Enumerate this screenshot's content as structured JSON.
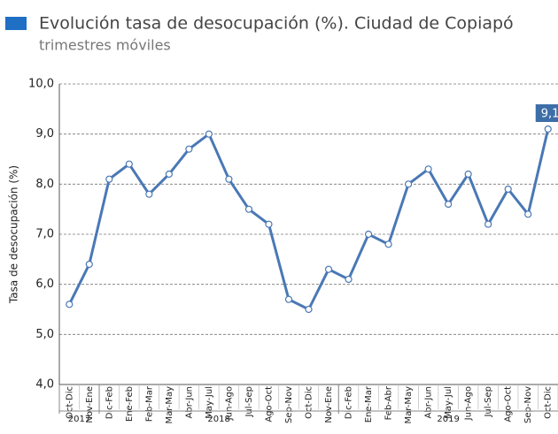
{
  "chart_data": {
    "type": "line",
    "title": "Evolución tasa de desocupación (%). Ciudad de Copiapó",
    "subtitle": "trimestres móviles",
    "y_label": "Tasa de desocupación (%)",
    "categories": [
      "Oct-Dic",
      "Nov-Ene",
      "Dic-Feb",
      "Ene-Feb",
      "Feb-Mar",
      "Mar-May",
      "Abr-Jun",
      "May-Jul",
      "Jun-Ago",
      "Jul-Sep",
      "Ago-Oct",
      "Sep-Nov",
      "Oct-Dic",
      "Nov-Ene",
      "Dic-Feb",
      "Ene-Mar",
      "Feb-Abr",
      "Mar-May",
      "Abr-Jun",
      "May-Jul",
      "Jun-Ago",
      "Jul-Sep",
      "Ago-Oct",
      "Sep-Nov",
      "Oct-Dic"
    ],
    "groups": [
      {
        "label": "2017",
        "count": 2
      },
      {
        "label": "2018",
        "count": 12
      },
      {
        "label": "2019",
        "count": 11
      }
    ],
    "series": [
      {
        "name": "Tasa de desocupación",
        "color": "#4a78b5",
        "values": [
          5.6,
          6.4,
          8.1,
          8.4,
          7.8,
          8.2,
          8.7,
          9.0,
          8.1,
          7.5,
          7.2,
          5.7,
          5.5,
          6.3,
          6.1,
          7.0,
          6.8,
          8.0,
          8.3,
          7.6,
          8.2,
          7.2,
          7.9,
          7.4,
          9.1
        ],
        "value_labels": [
          null,
          null,
          null,
          null,
          null,
          null,
          null,
          null,
          null,
          null,
          null,
          null,
          null,
          null,
          null,
          null,
          null,
          null,
          null,
          null,
          null,
          null,
          null,
          null,
          "9,1"
        ]
      }
    ],
    "ylim": [
      4,
      10
    ],
    "yticks": [
      {
        "value": 4,
        "label": "4,0"
      },
      {
        "value": 5,
        "label": "5,0"
      },
      {
        "value": 6,
        "label": "6,0"
      },
      {
        "value": 7,
        "label": "7,0"
      },
      {
        "value": 8,
        "label": "8,0"
      },
      {
        "value": 9,
        "label": "9,0"
      },
      {
        "value": 10,
        "label": "10,0"
      }
    ],
    "grid": true
  }
}
